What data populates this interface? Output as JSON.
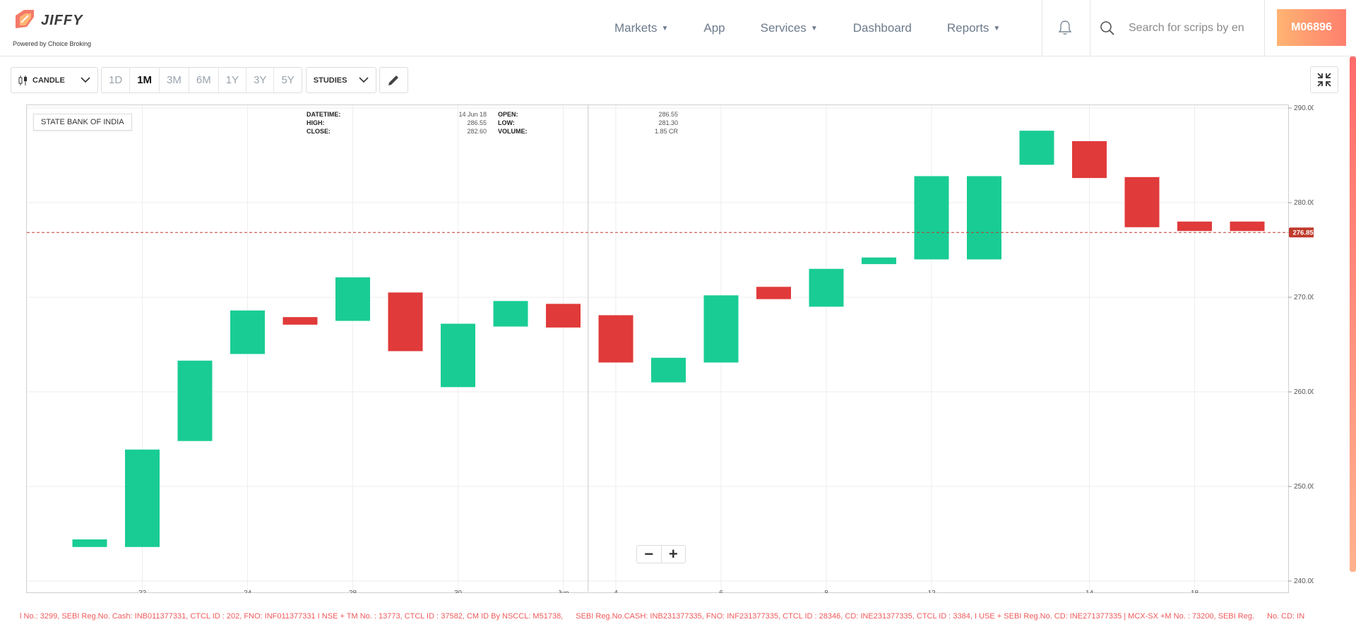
{
  "header": {
    "brand": "JIFFY",
    "brand_sub": "Powered by Choice Broking",
    "nav": [
      {
        "label": "Markets",
        "dropdown": true
      },
      {
        "label": "App",
        "dropdown": false
      },
      {
        "label": "Services",
        "dropdown": true
      },
      {
        "label": "Dashboard",
        "dropdown": false
      },
      {
        "label": "Reports",
        "dropdown": true
      }
    ],
    "search_placeholder": "Search for scrips by en",
    "user_id": "M06896"
  },
  "toolbar": {
    "chart_type": "CANDLE",
    "periods": [
      "1D",
      "1M",
      "3M",
      "6M",
      "1Y",
      "3Y",
      "5Y"
    ],
    "active_period": "1M",
    "studies_label": "STUDIES"
  },
  "chart_info": {
    "symbol": "STATE BANK OF INDIA",
    "datetime_label": "DATETIME:",
    "datetime": "14 Jun 18",
    "high_label": "HIGH:",
    "high": "286.55",
    "close_label": "CLOSE:",
    "close": "282.60",
    "open_label": "OPEN:",
    "open": "286.55",
    "low_label": "LOW:",
    "low": "281.30",
    "volume_label": "VOLUME:",
    "volume": "1.85 CR"
  },
  "colors": {
    "up": "#19cc94",
    "down": "#e03a3a",
    "grid": "#eeeeee",
    "price_tag": "#c0392b"
  },
  "chart_data": {
    "type": "bar",
    "ylim": [
      240,
      290
    ],
    "yticks": [
      "290.00",
      "280.00",
      "270.00",
      "260.00",
      "250.00",
      "240.00"
    ],
    "ytick_values": [
      290,
      280,
      270,
      260,
      250,
      240
    ],
    "xtick_labels": [
      "22",
      "24",
      "28",
      "30",
      "Jun",
      "4",
      "6",
      "8",
      "12",
      "14",
      "18"
    ],
    "xtick_candle_index": [
      1,
      3,
      5,
      7,
      9,
      10,
      12,
      14,
      16,
      19,
      21
    ],
    "last_price": 276.85,
    "last_price_label": "276.85",
    "candles": [
      {
        "open": 243.6,
        "close": 244.4
      },
      {
        "open": 243.6,
        "close": 253.9
      },
      {
        "open": 254.8,
        "close": 263.3
      },
      {
        "open": 264.0,
        "close": 268.6
      },
      {
        "open": 267.9,
        "close": 267.1
      },
      {
        "open": 267.5,
        "close": 272.1
      },
      {
        "open": 270.5,
        "close": 264.3
      },
      {
        "open": 260.5,
        "close": 267.2
      },
      {
        "open": 266.9,
        "close": 269.6
      },
      {
        "open": 269.3,
        "close": 266.8
      },
      {
        "open": 268.1,
        "close": 263.1
      },
      {
        "open": 261.0,
        "close": 263.6
      },
      {
        "open": 263.1,
        "close": 270.2
      },
      {
        "open": 271.1,
        "close": 269.8
      },
      {
        "open": 269.0,
        "close": 273.0
      },
      {
        "open": 273.5,
        "close": 274.2
      },
      {
        "open": 274.0,
        "close": 282.8
      },
      {
        "open": 274.0,
        "close": 282.8
      },
      {
        "open": 284.0,
        "close": 287.6
      },
      {
        "open": 286.5,
        "close": 282.6
      },
      {
        "open": 282.7,
        "close": 277.4
      },
      {
        "open": 278.0,
        "close": 277.0
      },
      {
        "open": 278.0,
        "close": 277.0
      }
    ]
  },
  "footer": {
    "lines": [
      "l No.: 3299, SEBI Reg.No. Cash: INB011377331, CTCL ID : 202, FNO: INF011377331 I NSE + TM No. : 13773, CTCL ID : 37582, CM ID By NSCCL: M51738,",
      "SEBI Reg.No.CASH: INB231377335, FNO: INF231377335, CTCL ID : 28346, CD: INE231377335, CTCL ID : 3384, I USE + SEBI Reg.No. CD: INE271377335 | MCX-SX +M No. : 73200, SEBI Reg.",
      "No. CD: IN"
    ]
  }
}
